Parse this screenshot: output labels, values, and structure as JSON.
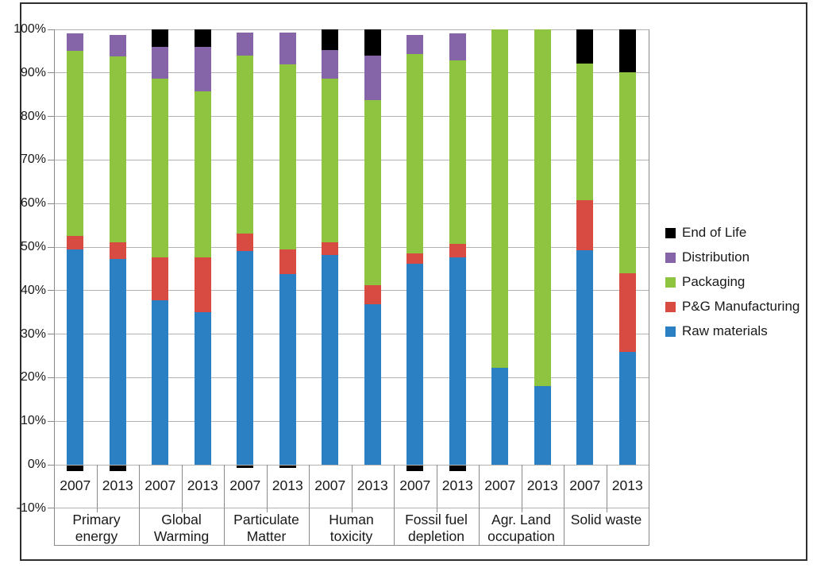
{
  "colors": {
    "background": "#ffffff",
    "frame_border": "#2e2e2e",
    "gridline": "#b3b3b3",
    "axis_line": "#8a8a8a",
    "text": "#191919"
  },
  "chart_data": {
    "type": "bar",
    "variant": "stacked-percent",
    "title": "",
    "xlabel": "",
    "ylabel": "",
    "ylim": [
      -10,
      100
    ],
    "y_tick_step": 10,
    "y_tick_labels": [
      "100%",
      "90%",
      "80%",
      "70%",
      "60%",
      "50%",
      "40%",
      "30%",
      "20%",
      "10%",
      "0%",
      "-10%"
    ],
    "grid": true,
    "legend_position": "right",
    "years": [
      "2007",
      "2013"
    ],
    "groups": [
      {
        "label_lines": [
          "Primary",
          "energy"
        ]
      },
      {
        "label_lines": [
          "Global",
          "Warming"
        ]
      },
      {
        "label_lines": [
          "Particulate",
          "Matter"
        ]
      },
      {
        "label_lines": [
          "Human",
          "toxicity"
        ]
      },
      {
        "label_lines": [
          "Fossil fuel",
          "depletion"
        ]
      },
      {
        "label_lines": [
          "Agr. Land",
          "occupation"
        ]
      },
      {
        "label_lines": [
          "Solid waste"
        ]
      }
    ],
    "series": [
      {
        "name": "Raw materials",
        "color": "#2b80c4",
        "values": [
          49.5,
          47.3,
          37.8,
          35.0,
          49.0,
          43.8,
          48.1,
          36.8,
          46.1,
          47.6,
          22.2,
          18.1,
          49.2,
          26.0
        ]
      },
      {
        "name": "P&G Manufacturing",
        "color": "#d84b43",
        "values": [
          3.0,
          3.8,
          9.8,
          12.6,
          4.1,
          5.6,
          3.0,
          4.4,
          2.5,
          3.2,
          0,
          0,
          11.5,
          18.0
        ]
      },
      {
        "name": "Packaging",
        "color": "#8ec43f",
        "values": [
          42.5,
          42.7,
          41.0,
          38.1,
          40.9,
          42.6,
          37.6,
          42.6,
          45.7,
          42.1,
          77.8,
          81.9,
          31.5,
          46.2
        ]
      },
      {
        "name": "Distribution",
        "color": "#8565a8",
        "values": [
          4.0,
          5.0,
          7.4,
          10.3,
          5.3,
          7.3,
          6.6,
          10.2,
          4.4,
          6.2,
          0,
          0,
          0,
          0
        ]
      },
      {
        "name": "End of Life",
        "color": "#000000",
        "values": [
          -1.2,
          -1.2,
          4.0,
          4.0,
          -0.5,
          -0.5,
          4.7,
          6.0,
          -1.2,
          -1.2,
          0,
          0,
          7.8,
          9.8
        ]
      }
    ],
    "legend_order": [
      "End of Life",
      "Distribution",
      "Packaging",
      "P&G Manufacturing",
      "Raw materials"
    ]
  }
}
